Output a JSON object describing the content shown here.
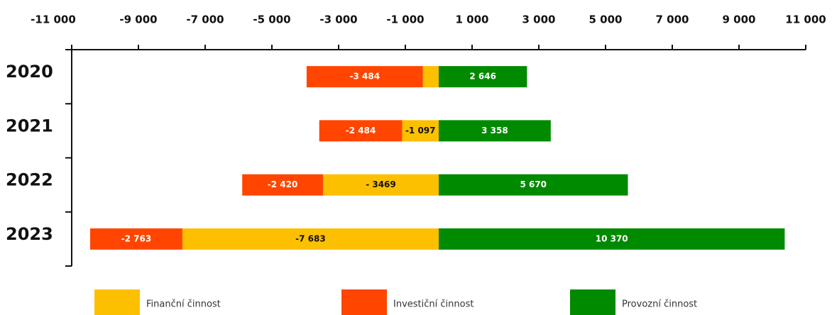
{
  "chart_data": {
    "type": "stacked_barh",
    "categories": [
      "2020",
      "2021",
      "2022",
      "2023"
    ],
    "xlim": [
      -11000,
      11000
    ],
    "xticks": [
      {
        "value": -11000,
        "label": "-11 000"
      },
      {
        "value": -9000,
        "label": "-9 000"
      },
      {
        "value": -7000,
        "label": "-7 000"
      },
      {
        "value": -5000,
        "label": "-5 000"
      },
      {
        "value": -3000,
        "label": "-3 000"
      },
      {
        "value": -1000,
        "label": "-1 000"
      },
      {
        "value": 1000,
        "label": "1 000"
      },
      {
        "value": 3000,
        "label": "3 000"
      },
      {
        "value": 5000,
        "label": "5 000"
      },
      {
        "value": 7000,
        "label": "7 000"
      },
      {
        "value": 9000,
        "label": "9 000"
      },
      {
        "value": 11000,
        "label": "11 000"
      }
    ],
    "series": [
      {
        "name": "Finanční činnost",
        "color": "#fcc000",
        "label_color": "#111111",
        "values": [
          -475,
          -1097,
          -3469,
          -7683
        ],
        "value_labels": [
          "-475",
          "-1 097",
          "- 3469",
          "-7 683"
        ]
      },
      {
        "name": "Investiční činnost",
        "color": "#ff4500",
        "label_color": "#ffffff",
        "values": [
          -3484,
          -2484,
          -2420,
          -2763
        ],
        "value_labels": [
          "-3 484",
          "-2 484",
          "-2 420",
          "-2 763"
        ]
      },
      {
        "name": "Provozní činnost",
        "color": "#008a00",
        "label_color": "#ffffff",
        "values": [
          2646,
          3358,
          5670,
          10370
        ],
        "value_labels": [
          "2 646",
          "3 358",
          "5 670",
          "10 370"
        ]
      }
    ]
  }
}
